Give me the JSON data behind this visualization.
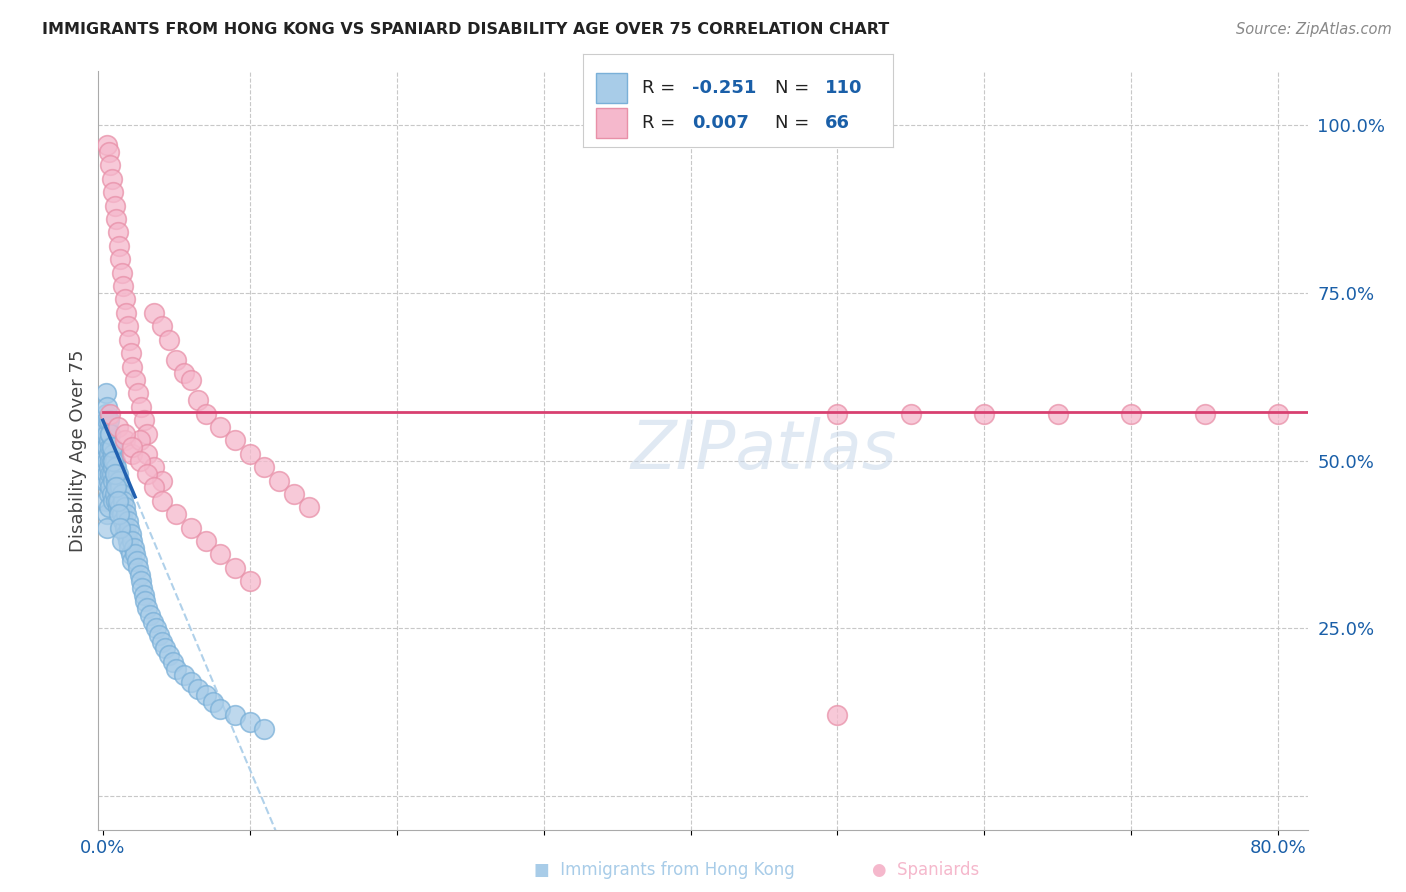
{
  "title": "IMMIGRANTS FROM HONG KONG VS SPANIARD DISABILITY AGE OVER 75 CORRELATION CHART",
  "source": "Source: ZipAtlas.com",
  "ylabel": "Disability Age Over 75",
  "xlim": [
    -0.003,
    0.82
  ],
  "ylim": [
    -0.05,
    1.08
  ],
  "blue_R": -0.251,
  "blue_N": 110,
  "pink_R": 0.007,
  "pink_N": 66,
  "blue_color": "#a8cce8",
  "blue_edge_color": "#7ab0d8",
  "blue_line_color": "#2060b0",
  "pink_color": "#f5b8cc",
  "pink_edge_color": "#e890a8",
  "pink_line_color": "#d84070",
  "watermark_color": "#c8d8ea",
  "grid_color": "#c8c8c8",
  "blue_x": [
    0.001,
    0.001,
    0.001,
    0.001,
    0.001,
    0.001,
    0.001,
    0.002,
    0.002,
    0.002,
    0.002,
    0.002,
    0.002,
    0.002,
    0.002,
    0.003,
    0.003,
    0.003,
    0.003,
    0.003,
    0.003,
    0.003,
    0.004,
    0.004,
    0.004,
    0.004,
    0.004,
    0.004,
    0.005,
    0.005,
    0.005,
    0.005,
    0.005,
    0.006,
    0.006,
    0.006,
    0.006,
    0.007,
    0.007,
    0.007,
    0.007,
    0.008,
    0.008,
    0.008,
    0.009,
    0.009,
    0.009,
    0.01,
    0.01,
    0.01,
    0.011,
    0.011,
    0.012,
    0.012,
    0.013,
    0.013,
    0.014,
    0.014,
    0.015,
    0.015,
    0.016,
    0.016,
    0.017,
    0.017,
    0.018,
    0.018,
    0.019,
    0.019,
    0.02,
    0.02,
    0.021,
    0.022,
    0.023,
    0.024,
    0.025,
    0.026,
    0.027,
    0.028,
    0.029,
    0.03,
    0.032,
    0.034,
    0.036,
    0.038,
    0.04,
    0.042,
    0.045,
    0.048,
    0.05,
    0.055,
    0.06,
    0.065,
    0.07,
    0.075,
    0.08,
    0.09,
    0.1,
    0.11,
    0.002,
    0.003,
    0.004,
    0.005,
    0.006,
    0.007,
    0.008,
    0.009,
    0.01,
    0.011,
    0.012,
    0.013
  ],
  "blue_y": [
    0.54,
    0.52,
    0.5,
    0.48,
    0.56,
    0.53,
    0.47,
    0.55,
    0.53,
    0.51,
    0.49,
    0.57,
    0.52,
    0.47,
    0.44,
    0.54,
    0.52,
    0.5,
    0.48,
    0.56,
    0.42,
    0.4,
    0.53,
    0.51,
    0.49,
    0.47,
    0.45,
    0.43,
    0.54,
    0.52,
    0.5,
    0.48,
    0.46,
    0.52,
    0.5,
    0.48,
    0.45,
    0.51,
    0.49,
    0.47,
    0.44,
    0.5,
    0.48,
    0.45,
    0.49,
    0.47,
    0.44,
    0.48,
    0.46,
    0.43,
    0.47,
    0.44,
    0.46,
    0.43,
    0.45,
    0.42,
    0.44,
    0.41,
    0.43,
    0.4,
    0.42,
    0.39,
    0.41,
    0.38,
    0.4,
    0.37,
    0.39,
    0.36,
    0.38,
    0.35,
    0.37,
    0.36,
    0.35,
    0.34,
    0.33,
    0.32,
    0.31,
    0.3,
    0.29,
    0.28,
    0.27,
    0.26,
    0.25,
    0.24,
    0.23,
    0.22,
    0.21,
    0.2,
    0.19,
    0.18,
    0.17,
    0.16,
    0.15,
    0.14,
    0.13,
    0.12,
    0.11,
    0.1,
    0.6,
    0.58,
    0.56,
    0.54,
    0.52,
    0.5,
    0.48,
    0.46,
    0.44,
    0.42,
    0.4,
    0.38
  ],
  "pink_x": [
    0.003,
    0.004,
    0.005,
    0.006,
    0.007,
    0.008,
    0.009,
    0.01,
    0.011,
    0.012,
    0.013,
    0.014,
    0.015,
    0.016,
    0.017,
    0.018,
    0.019,
    0.02,
    0.022,
    0.024,
    0.026,
    0.028,
    0.03,
    0.035,
    0.04,
    0.045,
    0.05,
    0.055,
    0.06,
    0.065,
    0.07,
    0.08,
    0.09,
    0.1,
    0.11,
    0.12,
    0.13,
    0.14,
    0.005,
    0.01,
    0.015,
    0.02,
    0.025,
    0.03,
    0.035,
    0.04,
    0.015,
    0.02,
    0.025,
    0.03,
    0.035,
    0.04,
    0.05,
    0.06,
    0.07,
    0.08,
    0.09,
    0.1,
    0.5,
    0.55,
    0.6,
    0.65,
    0.7,
    0.75,
    0.8,
    0.5
  ],
  "pink_y": [
    0.97,
    0.96,
    0.94,
    0.92,
    0.9,
    0.88,
    0.86,
    0.84,
    0.82,
    0.8,
    0.78,
    0.76,
    0.74,
    0.72,
    0.7,
    0.68,
    0.66,
    0.64,
    0.62,
    0.6,
    0.58,
    0.56,
    0.54,
    0.72,
    0.7,
    0.68,
    0.65,
    0.63,
    0.62,
    0.59,
    0.57,
    0.55,
    0.53,
    0.51,
    0.49,
    0.47,
    0.45,
    0.43,
    0.57,
    0.55,
    0.53,
    0.51,
    0.53,
    0.51,
    0.49,
    0.47,
    0.54,
    0.52,
    0.5,
    0.48,
    0.46,
    0.44,
    0.42,
    0.4,
    0.38,
    0.36,
    0.34,
    0.32,
    0.57,
    0.57,
    0.57,
    0.57,
    0.57,
    0.57,
    0.57,
    0.12
  ],
  "pink_trend_y_intercept": 0.572,
  "pink_trend_slope": 0.0,
  "blue_trend_y_intercept": 0.56,
  "blue_trend_slope": -5.2
}
